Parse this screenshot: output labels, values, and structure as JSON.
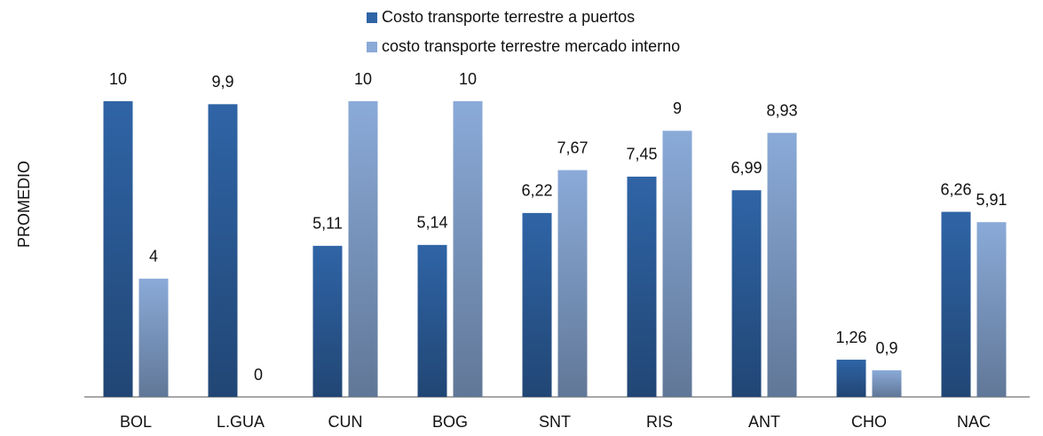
{
  "chart_data": {
    "type": "bar",
    "y_label": "PROMEDIO",
    "categories": [
      "BOL",
      "L.GUA",
      "CUN",
      "BOG",
      "SNT",
      "RIS",
      "ANT",
      "CHO",
      "NAC"
    ],
    "series": [
      {
        "name": "Costo transporte terrestre a puertos",
        "color": "#2f64a6",
        "values": [
          10,
          9.9,
          5.11,
          5.14,
          6.22,
          7.45,
          6.99,
          1.26,
          6.26
        ],
        "value_labels": [
          "10",
          "9,9",
          "5,11",
          "5,14",
          "6,22",
          "7,45",
          "6,99",
          "1,26",
          "6,26"
        ]
      },
      {
        "name": "costo transporte terrestre mercado interno",
        "color": "#8aaad8",
        "values": [
          4,
          0,
          10,
          10,
          7.67,
          9,
          8.93,
          0.9,
          5.91
        ],
        "value_labels": [
          "4",
          "0",
          "10",
          "10",
          "7,67",
          "9",
          "8,93",
          "0,9",
          "5,91"
        ]
      }
    ],
    "ylim": [
      0,
      10
    ],
    "legend": "top"
  }
}
